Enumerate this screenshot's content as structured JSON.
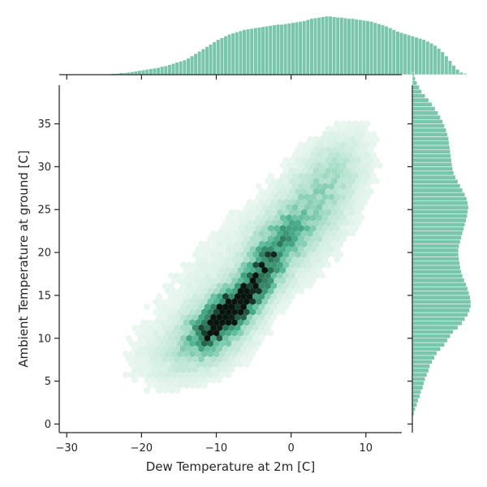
{
  "chart_data": {
    "type": "hexbin-joint",
    "xlabel": "Dew Temperature at 2m [C]",
    "ylabel": "Ambient Temperature at ground [C]",
    "xlim": [
      -31,
      14.8
    ],
    "ylim": [
      -1,
      39.5
    ],
    "xticks": [
      -30,
      -20,
      -10,
      0,
      10
    ],
    "yticks": [
      0,
      5,
      10,
      15,
      20,
      25,
      30,
      35
    ],
    "xtick_labels": [
      "−30",
      "−20",
      "−10",
      "0",
      "10"
    ],
    "ytick_labels": [
      "0",
      "5",
      "10",
      "15",
      "20",
      "25",
      "30",
      "35"
    ],
    "color": "#4cb391",
    "grid": false,
    "density_components": [
      {
        "x": -9.5,
        "y": 12.0,
        "sx": 2.8,
        "sy": 2.3,
        "rho": 0.55,
        "w": 1.0
      },
      {
        "x": -6.0,
        "y": 15.0,
        "sx": 2.7,
        "sy": 2.2,
        "rho": 0.7,
        "w": 0.6
      },
      {
        "x": -3.5,
        "y": 18.5,
        "sx": 2.3,
        "sy": 2.0,
        "rho": 0.6,
        "w": 0.55
      },
      {
        "x": -1.5,
        "y": 22.0,
        "sx": 2.5,
        "sy": 2.0,
        "rho": 0.5,
        "w": 0.32
      },
      {
        "x": 2.0,
        "y": 24.0,
        "sx": 3.2,
        "sy": 3.5,
        "rho": 0.4,
        "w": 0.22
      },
      {
        "x": 5.5,
        "y": 29.0,
        "sx": 3.0,
        "sy": 3.2,
        "rho": 0.4,
        "w": 0.18
      },
      {
        "x": -13.0,
        "y": 8.5,
        "sx": 4.5,
        "sy": 2.5,
        "rho": 0.3,
        "w": 0.12
      },
      {
        "x": -6.0,
        "y": 18.0,
        "sx": 9.0,
        "sy": 7.5,
        "rho": 0.7,
        "w": 0.08
      }
    ],
    "x_marginal": {
      "bin_start": -25,
      "bin_width": 0.5,
      "counts": [
        0.01,
        0.01,
        0.02,
        0.02,
        0.03,
        0.03,
        0.04,
        0.05,
        0.06,
        0.07,
        0.08,
        0.09,
        0.1,
        0.11,
        0.12,
        0.14,
        0.15,
        0.17,
        0.19,
        0.21,
        0.23,
        0.25,
        0.28,
        0.32,
        0.36,
        0.4,
        0.44,
        0.48,
        0.52,
        0.56,
        0.6,
        0.63,
        0.66,
        0.69,
        0.71,
        0.73,
        0.75,
        0.77,
        0.78,
        0.79,
        0.8,
        0.81,
        0.82,
        0.83,
        0.84,
        0.85,
        0.86,
        0.86,
        0.87,
        0.88,
        0.89,
        0.9,
        0.91,
        0.92,
        0.94,
        0.96,
        0.97,
        0.98,
        0.99,
        1.0,
        1.0,
        0.99,
        0.98,
        0.98,
        0.97,
        0.96,
        0.96,
        0.95,
        0.94,
        0.93,
        0.92,
        0.91,
        0.89,
        0.87,
        0.85,
        0.83,
        0.8,
        0.77,
        0.74,
        0.72,
        0.7,
        0.68,
        0.66,
        0.64,
        0.62,
        0.6,
        0.57,
        0.54,
        0.5,
        0.45,
        0.39,
        0.32,
        0.24,
        0.16,
        0.09,
        0.04,
        0.02
      ]
    },
    "y_marginal": {
      "bin_start": 1,
      "bin_width": 0.5,
      "counts": [
        0.03,
        0.05,
        0.08,
        0.1,
        0.13,
        0.15,
        0.18,
        0.2,
        0.22,
        0.25,
        0.28,
        0.3,
        0.34,
        0.38,
        0.42,
        0.48,
        0.55,
        0.6,
        0.65,
        0.7,
        0.78,
        0.85,
        0.9,
        0.95,
        0.98,
        1.0,
        1.0,
        0.99,
        0.97,
        0.95,
        0.92,
        0.89,
        0.86,
        0.84,
        0.82,
        0.81,
        0.8,
        0.79,
        0.79,
        0.8,
        0.82,
        0.84,
        0.86,
        0.88,
        0.9,
        0.92,
        0.94,
        0.95,
        0.96,
        0.95,
        0.93,
        0.9,
        0.86,
        0.82,
        0.78,
        0.74,
        0.71,
        0.69,
        0.68,
        0.67,
        0.66,
        0.65,
        0.64,
        0.63,
        0.62,
        0.6,
        0.58,
        0.55,
        0.52,
        0.48,
        0.44,
        0.39,
        0.34,
        0.28,
        0.22,
        0.16,
        0.12,
        0.08,
        0.05,
        0.03
      ]
    }
  }
}
